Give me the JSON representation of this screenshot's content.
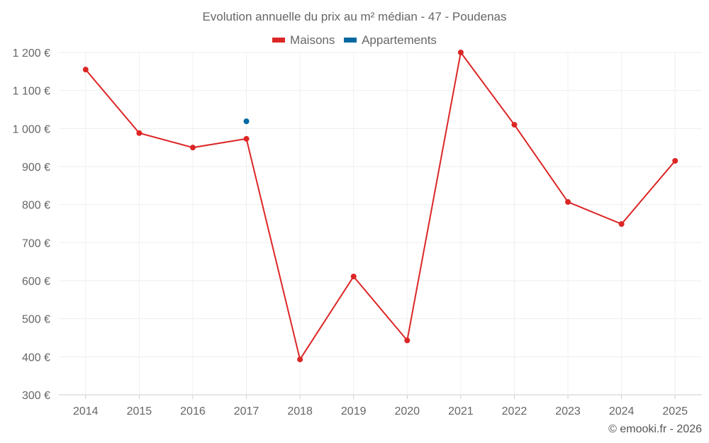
{
  "chart_data": {
    "type": "line",
    "title": "Evolution annuelle du prix au m² médian - 47 - Poudenas",
    "categories": [
      "2014",
      "2015",
      "2016",
      "2017",
      "2018",
      "2019",
      "2020",
      "2021",
      "2022",
      "2023",
      "2024",
      "2025"
    ],
    "series": [
      {
        "name": "Maisons",
        "color": "#dc2626",
        "values": [
          1155,
          988,
          950,
          973,
          393,
          611,
          443,
          1200,
          1010,
          807,
          749,
          915
        ]
      },
      {
        "name": "Appartements",
        "color": "#0369a1",
        "values": [
          null,
          null,
          null,
          1019,
          null,
          null,
          null,
          null,
          null,
          null,
          null,
          null
        ]
      }
    ],
    "ylim": [
      300,
      1200
    ],
    "yticks": [
      "300 €",
      "400 €",
      "500 €",
      "600 €",
      "700 €",
      "800 €",
      "900 €",
      "1 000 €",
      "1 100 €",
      "1 200 €"
    ],
    "grid": true,
    "legend": "top"
  },
  "credit": "© emooki.fr - 2026"
}
